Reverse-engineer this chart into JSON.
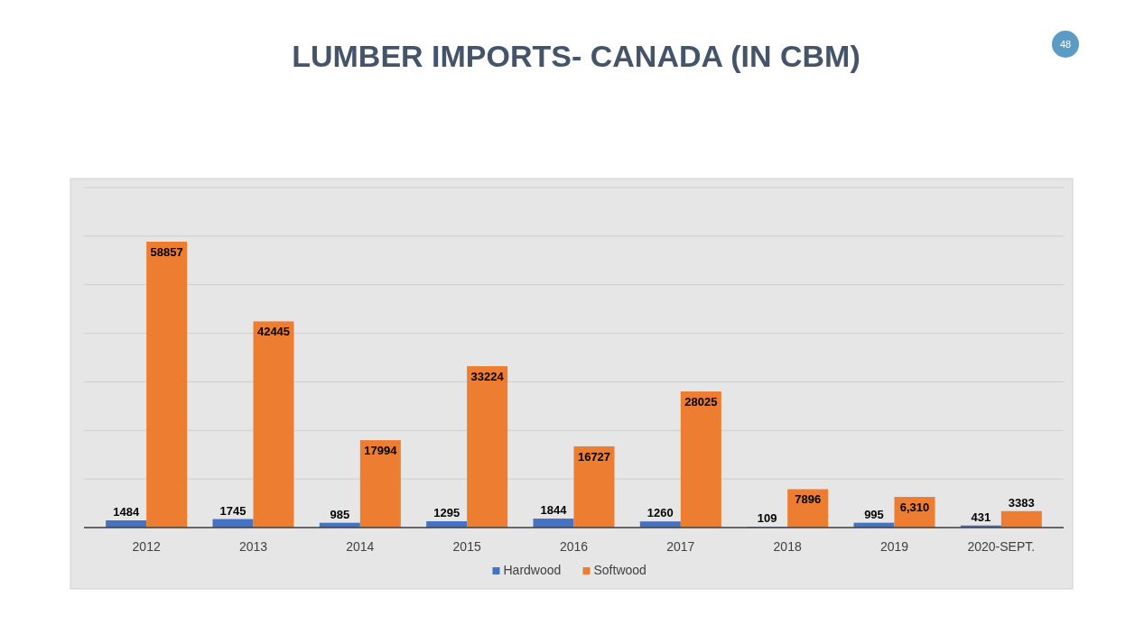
{
  "chart_data": {
    "type": "bar",
    "title": "LUMBER IMPORTS- CANADA (IN CBM)",
    "annotations": [
      "48"
    ],
    "categories": [
      "2012",
      "2013",
      "2014",
      "2015",
      "2016",
      "2017",
      "2018",
      "2019",
      "2020-SEPT."
    ],
    "series": [
      {
        "name": "Hardwood",
        "color": "#4472c4",
        "values": [
          1484,
          1745,
          985,
          1295,
          1844,
          1260,
          109,
          995,
          431
        ],
        "value_labels": [
          "1484",
          "1745",
          "985",
          "1295",
          "1844",
          "1260",
          "109",
          "995",
          "431"
        ]
      },
      {
        "name": "Softwood",
        "color": "#ed7d31",
        "values": [
          58857,
          42445,
          17994,
          33224,
          16727,
          28025,
          7896,
          6310,
          3383
        ],
        "value_labels": [
          "58857",
          "42445",
          "17994",
          "33224",
          "16727",
          "28025",
          "7896",
          "6,310",
          "3383"
        ]
      }
    ],
    "ylim": [
      0,
      70000
    ],
    "yticks": [
      {
        "value": 0,
        "label": null
      },
      {
        "value": 10000,
        "label": null
      },
      {
        "value": 20000,
        "label": null
      },
      {
        "value": 30000,
        "label": null
      },
      {
        "value": 40000,
        "label": null
      },
      {
        "value": 50000,
        "label": null
      },
      {
        "value": 60000,
        "label": null
      },
      {
        "value": 70000,
        "label": null
      }
    ],
    "tick_labels": "x",
    "grid": "y",
    "legend": "bottom"
  }
}
